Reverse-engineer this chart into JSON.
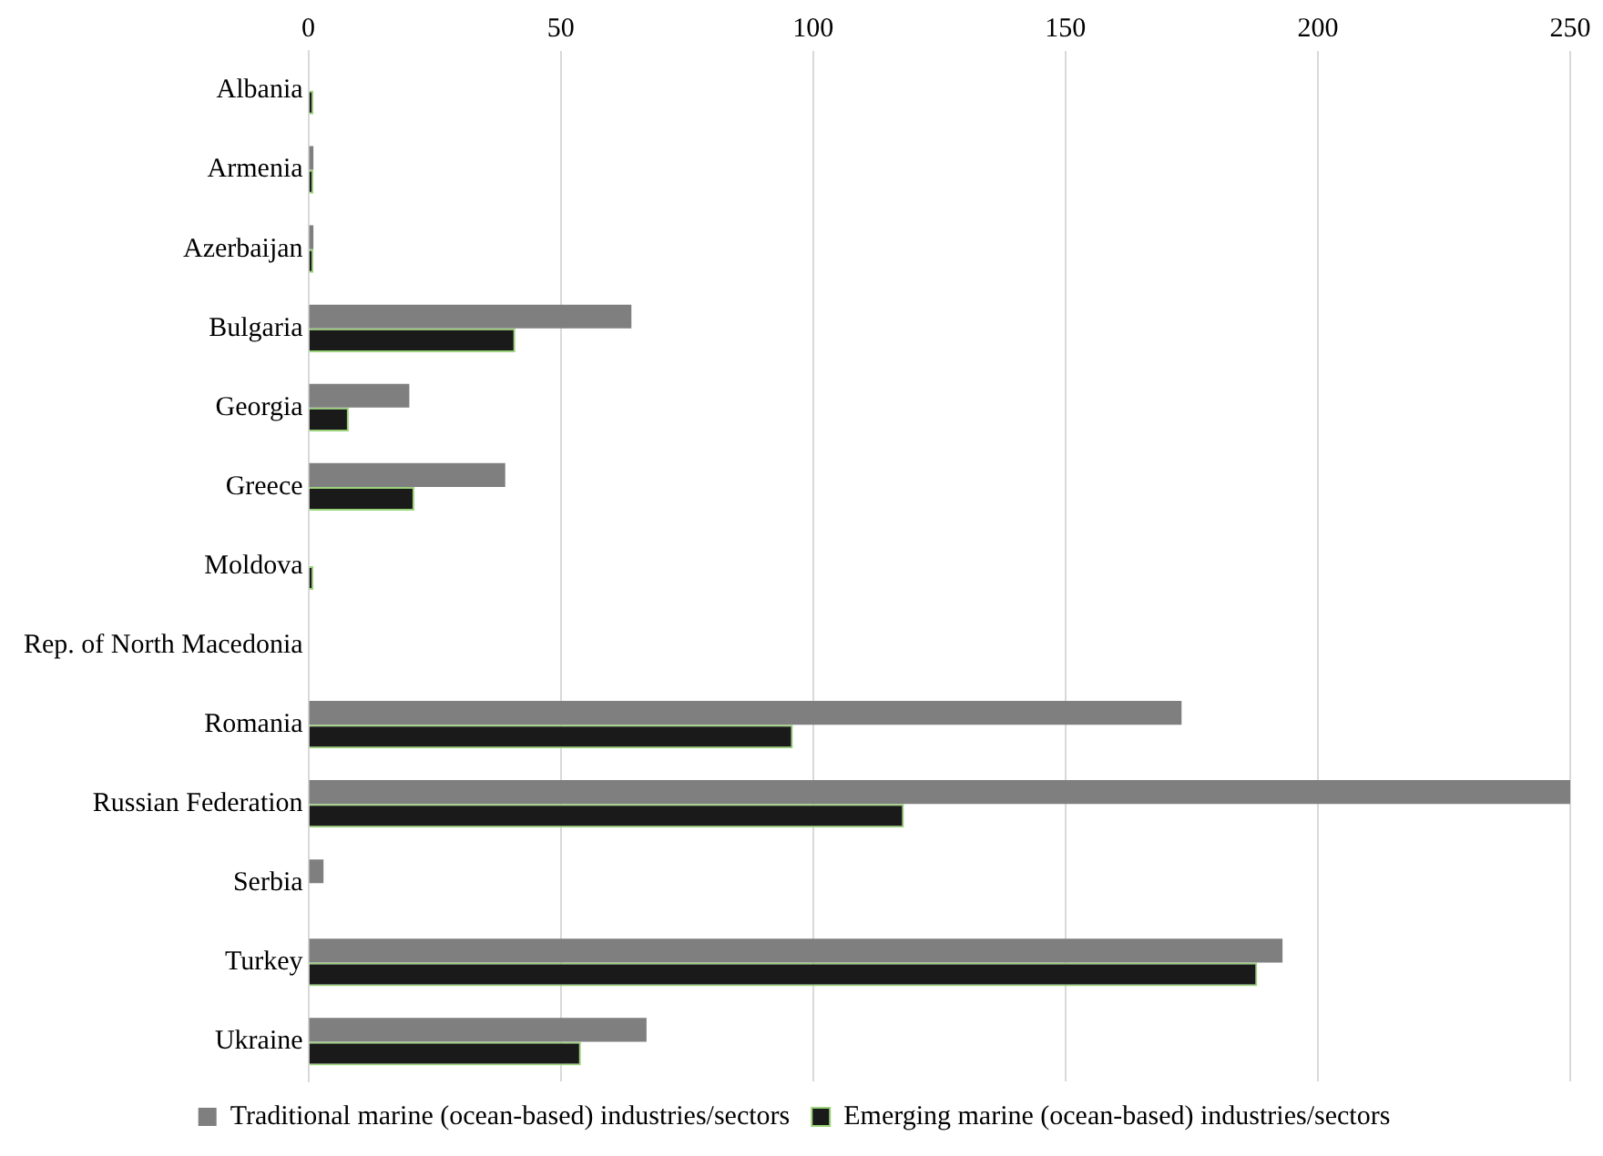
{
  "chart_data": {
    "type": "bar",
    "orientation": "horizontal",
    "categories": [
      "Albania",
      "Armenia",
      "Azerbaijan",
      "Bulgaria",
      "Georgia",
      "Greece",
      "Moldova",
      "Rep. of North Macedonia",
      "Romania",
      "Russian Federation",
      "Serbia",
      "Turkey",
      "Ukraine"
    ],
    "series": [
      {
        "name": "Traditional marine (ocean-based) industries/sectors",
        "color": "#7f7f7f",
        "values": [
          0,
          1,
          1,
          64,
          20,
          39,
          0,
          0,
          173,
          250,
          3,
          193,
          67
        ]
      },
      {
        "name": "Emerging marine (ocean-based) industries/sectors",
        "color": "#1a1a1a",
        "values": [
          1,
          1,
          1,
          41,
          8,
          21,
          1,
          0,
          96,
          118,
          0,
          188,
          54
        ]
      }
    ],
    "xlim": [
      0,
      250
    ],
    "xticks": [
      0,
      50,
      100,
      150,
      200,
      250
    ],
    "grid": "x",
    "legend": "bottom"
  }
}
